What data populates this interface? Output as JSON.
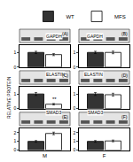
{
  "chart_data": [
    {
      "type": "bar",
      "title": "(A)",
      "subtitle": "GAPDH",
      "categories": [
        null
      ],
      "series": [
        {
          "name": "WT",
          "color": "#333333",
          "values": [
            1.0
          ],
          "errors": [
            0.08
          ]
        },
        {
          "name": "MFS",
          "color": "#ffffff",
          "values": [
            0.85
          ],
          "errors": [
            0.07
          ]
        }
      ],
      "ylim": [
        0,
        1.5
      ],
      "yticks": [
        0,
        1
      ]
    },
    {
      "type": "bar",
      "title": "(B)",
      "subtitle": "GAPDH",
      "categories": [
        null
      ],
      "series": [
        {
          "name": "WT",
          "color": "#333333",
          "values": [
            1.0
          ],
          "errors": [
            0.08
          ]
        },
        {
          "name": "MFS",
          "color": "#ffffff",
          "values": [
            1.0
          ],
          "errors": [
            0.09
          ]
        }
      ],
      "ylim": [
        0,
        1.5
      ],
      "yticks": [
        0,
        1
      ]
    },
    {
      "type": "bar",
      "title": "(C)",
      "subtitle": "ELASTIN",
      "categories": [
        null
      ],
      "ylabel": "RELATIVE PROTEIN",
      "annotations": [
        "**"
      ],
      "series": [
        {
          "name": "WT",
          "color": "#333333",
          "values": [
            1.0
          ],
          "errors": [
            0.1
          ]
        },
        {
          "name": "MFS",
          "color": "#ffffff",
          "values": [
            0.3
          ],
          "errors": [
            0.05
          ]
        }
      ],
      "ylim": [
        0,
        1.5
      ],
      "yticks": [
        0,
        1
      ]
    },
    {
      "type": "bar",
      "title": "(D)",
      "subtitle": "ELASTIN",
      "categories": [
        null
      ],
      "series": [
        {
          "name": "WT",
          "color": "#333333",
          "values": [
            1.0
          ],
          "errors": [
            0.1
          ]
        },
        {
          "name": "MFS",
          "color": "#ffffff",
          "values": [
            0.95
          ],
          "errors": [
            0.1
          ]
        }
      ],
      "ylim": [
        0,
        1.5
      ],
      "yticks": [
        0,
        1
      ]
    },
    {
      "type": "bar",
      "title": "(E)",
      "subtitle": "SMAD3",
      "categories": [
        "M"
      ],
      "series": [
        {
          "name": "WT",
          "color": "#333333",
          "values": [
            1.0
          ],
          "errors": [
            0.1
          ]
        },
        {
          "name": "MFS",
          "color": "#ffffff",
          "values": [
            1.9
          ],
          "errors": [
            0.15
          ]
        }
      ],
      "ylim": [
        0,
        2.5
      ],
      "yticks": [
        0,
        1,
        2
      ]
    },
    {
      "type": "bar",
      "title": "(F)",
      "subtitle": "SMAD3",
      "categories": [
        "F"
      ],
      "series": [
        {
          "name": "WT",
          "color": "#333333",
          "values": [
            1.0
          ],
          "errors": [
            0.1
          ]
        },
        {
          "name": "MFS",
          "color": "#ffffff",
          "values": [
            1.05
          ],
          "errors": [
            0.1
          ]
        }
      ],
      "ylim": [
        0,
        2.5
      ],
      "yticks": [
        0,
        1,
        2
      ]
    }
  ]
}
